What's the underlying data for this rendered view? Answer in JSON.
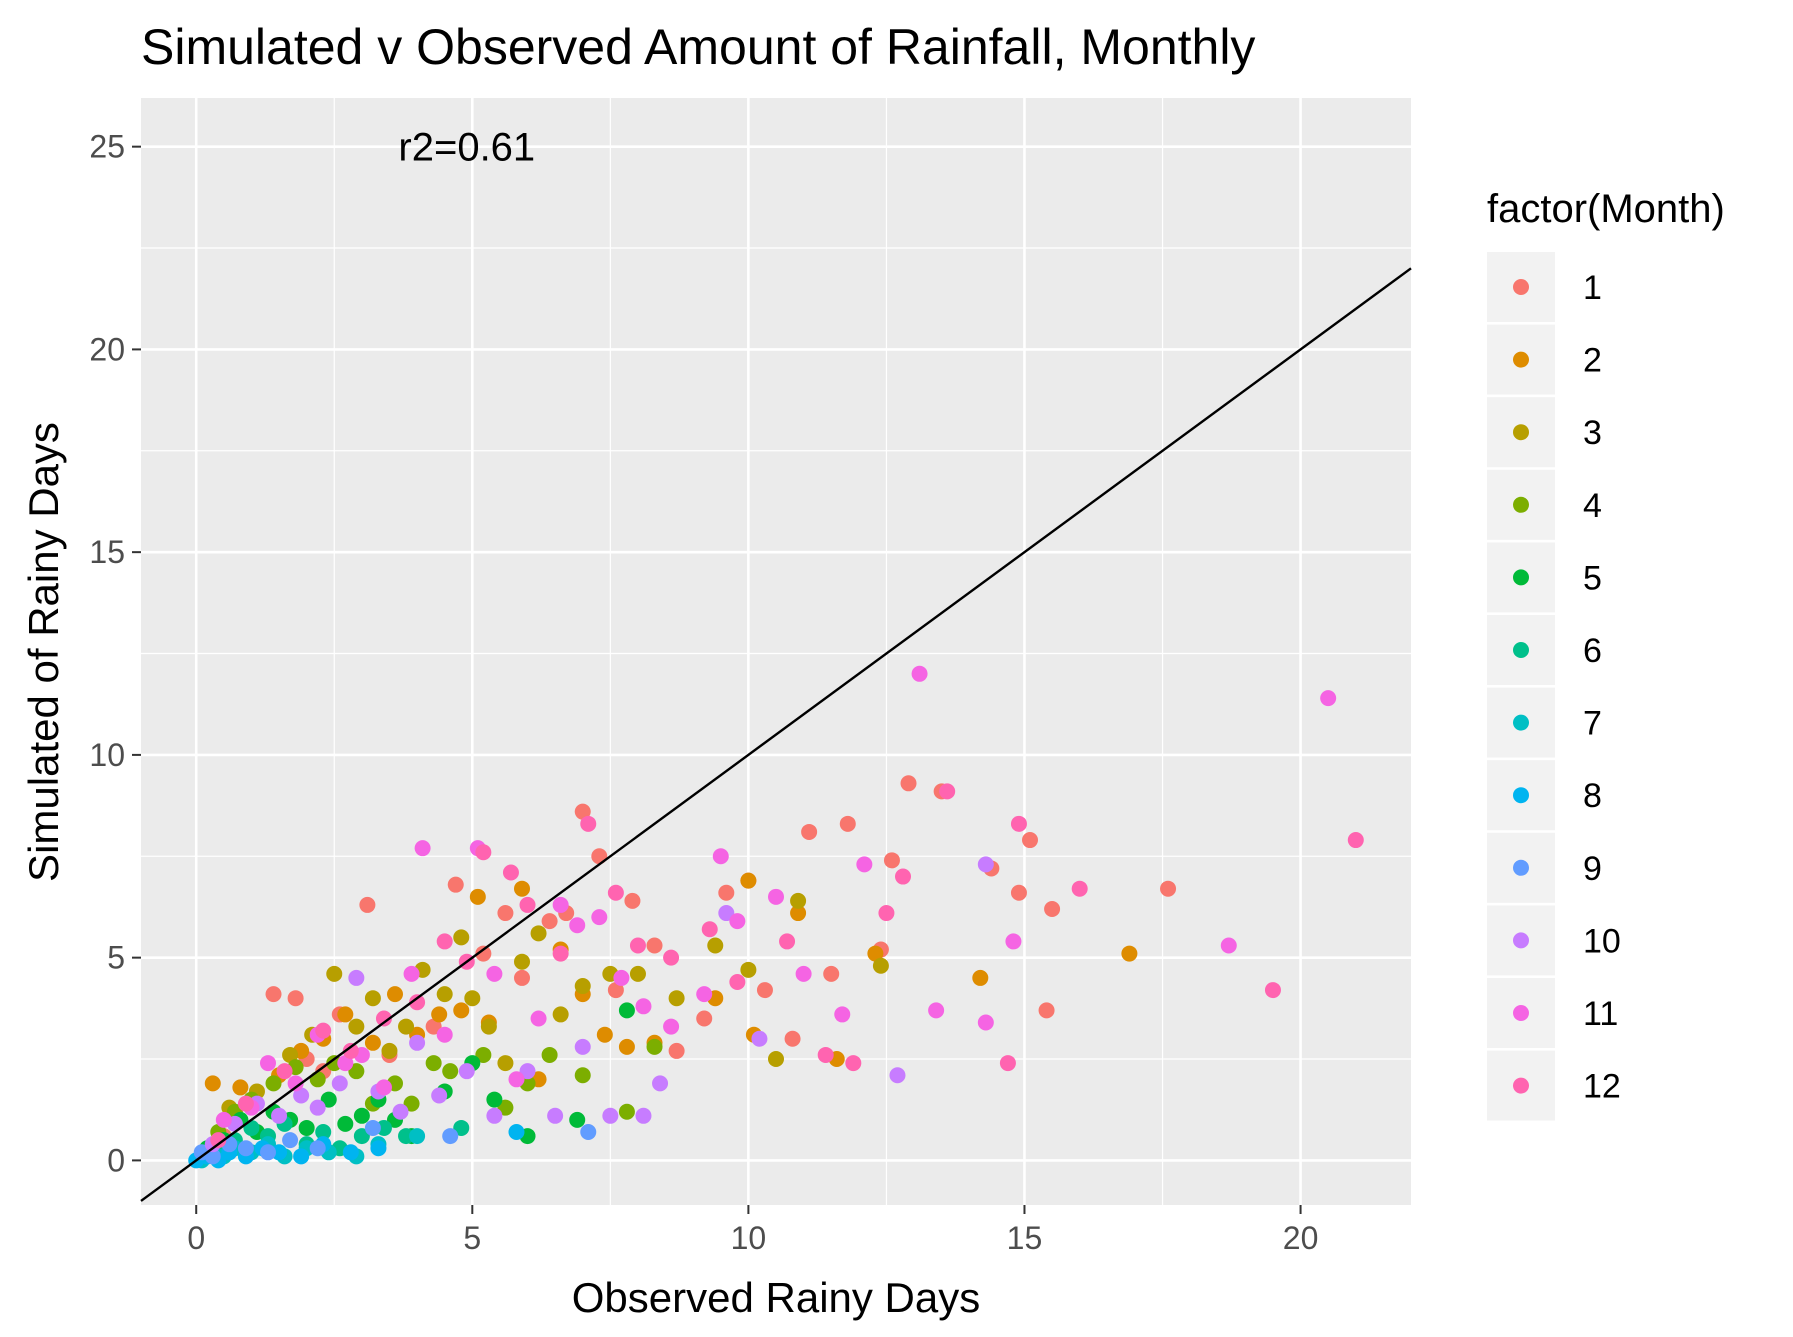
{
  "chart_data": {
    "type": "scatter",
    "title": "Simulated v Observed Amount of Rainfall, Monthly",
    "xlabel": "Observed Rainy Days",
    "ylabel": "Simulated of Rainy Days",
    "xlim": [
      -1,
      22
    ],
    "ylim": [
      -1.1,
      26.2
    ],
    "x_ticks": [
      0,
      5,
      10,
      15,
      20
    ],
    "y_ticks": [
      0,
      5,
      10,
      15,
      20,
      25
    ],
    "grid": true,
    "annotation": {
      "text": "r2=0.61",
      "x": 4.9,
      "y": 25
    },
    "reference_line": {
      "slope": 1,
      "intercept": 0
    },
    "legend": {
      "title": "factor(Month)",
      "position": "right"
    },
    "series": [
      {
        "name": "1",
        "color": "#F8766D",
        "points": [
          [
            0.2,
            0.1
          ],
          [
            0.5,
            0.6
          ],
          [
            1.4,
            4.1
          ],
          [
            1.8,
            4.0
          ],
          [
            2.0,
            2.5
          ],
          [
            2.3,
            2.2
          ],
          [
            2.6,
            3.6
          ],
          [
            3.1,
            6.3
          ],
          [
            3.5,
            2.6
          ],
          [
            4.3,
            3.3
          ],
          [
            4.7,
            6.8
          ],
          [
            5.2,
            5.1
          ],
          [
            5.6,
            6.1
          ],
          [
            5.9,
            4.5
          ],
          [
            6.4,
            5.9
          ],
          [
            6.7,
            6.1
          ],
          [
            7.0,
            8.6
          ],
          [
            7.3,
            7.5
          ],
          [
            7.6,
            4.2
          ],
          [
            7.9,
            6.4
          ],
          [
            8.3,
            5.3
          ],
          [
            8.7,
            2.7
          ],
          [
            9.2,
            3.5
          ],
          [
            9.6,
            6.6
          ],
          [
            10.0,
            6.9
          ],
          [
            10.3,
            4.2
          ],
          [
            10.8,
            3.0
          ],
          [
            11.1,
            8.1
          ],
          [
            11.5,
            4.6
          ],
          [
            11.8,
            8.3
          ],
          [
            12.4,
            5.2
          ],
          [
            12.6,
            7.4
          ],
          [
            12.9,
            9.3
          ],
          [
            13.5,
            9.1
          ],
          [
            14.4,
            7.2
          ],
          [
            14.9,
            6.6
          ],
          [
            15.1,
            7.9
          ],
          [
            15.4,
            3.7
          ],
          [
            15.5,
            6.2
          ],
          [
            17.6,
            6.7
          ]
        ]
      },
      {
        "name": "2",
        "color": "#DE8C00",
        "points": [
          [
            0.3,
            1.9
          ],
          [
            0.8,
            1.8
          ],
          [
            1.5,
            2.1
          ],
          [
            1.9,
            2.7
          ],
          [
            2.3,
            3.0
          ],
          [
            2.7,
            3.6
          ],
          [
            3.2,
            2.9
          ],
          [
            3.6,
            4.1
          ],
          [
            4.0,
            3.1
          ],
          [
            4.4,
            3.6
          ],
          [
            4.8,
            3.7
          ],
          [
            5.1,
            6.5
          ],
          [
            5.3,
            3.4
          ],
          [
            5.9,
            6.7
          ],
          [
            6.2,
            2.0
          ],
          [
            6.6,
            5.2
          ],
          [
            7.0,
            4.1
          ],
          [
            7.4,
            3.1
          ],
          [
            7.8,
            2.8
          ],
          [
            8.3,
            2.9
          ],
          [
            9.4,
            4.0
          ],
          [
            10.0,
            6.9
          ],
          [
            10.1,
            3.1
          ],
          [
            10.9,
            6.1
          ],
          [
            11.6,
            2.5
          ],
          [
            12.3,
            5.1
          ],
          [
            14.2,
            4.5
          ],
          [
            16.9,
            5.1
          ]
        ]
      },
      {
        "name": "3",
        "color": "#B79F00",
        "points": [
          [
            0.6,
            1.3
          ],
          [
            1.1,
            1.7
          ],
          [
            1.7,
            2.6
          ],
          [
            2.1,
            3.1
          ],
          [
            2.5,
            4.6
          ],
          [
            2.9,
            3.3
          ],
          [
            3.2,
            4.0
          ],
          [
            3.5,
            2.7
          ],
          [
            3.8,
            3.3
          ],
          [
            4.1,
            4.7
          ],
          [
            4.5,
            4.1
          ],
          [
            4.8,
            5.5
          ],
          [
            5.0,
            4.0
          ],
          [
            5.3,
            3.3
          ],
          [
            5.6,
            2.4
          ],
          [
            5.9,
            4.9
          ],
          [
            6.2,
            5.6
          ],
          [
            6.6,
            3.6
          ],
          [
            7.0,
            4.3
          ],
          [
            7.5,
            4.6
          ],
          [
            8.0,
            4.6
          ],
          [
            8.7,
            4.0
          ],
          [
            9.4,
            5.3
          ],
          [
            10.0,
            4.7
          ],
          [
            10.5,
            2.5
          ],
          [
            10.9,
            6.4
          ],
          [
            12.4,
            4.8
          ]
        ]
      },
      {
        "name": "4",
        "color": "#7CAE00",
        "points": [
          [
            0.4,
            0.7
          ],
          [
            0.7,
            1.2
          ],
          [
            1.0,
            1.5
          ],
          [
            1.4,
            1.9
          ],
          [
            1.8,
            2.3
          ],
          [
            2.2,
            2.0
          ],
          [
            2.5,
            2.4
          ],
          [
            2.9,
            2.2
          ],
          [
            3.2,
            1.4
          ],
          [
            3.6,
            1.9
          ],
          [
            3.9,
            1.4
          ],
          [
            4.3,
            2.4
          ],
          [
            4.6,
            2.2
          ],
          [
            5.2,
            2.6
          ],
          [
            5.6,
            1.3
          ],
          [
            6.0,
            1.9
          ],
          [
            6.4,
            2.6
          ],
          [
            7.0,
            2.1
          ],
          [
            7.8,
            1.2
          ],
          [
            8.3,
            2.8
          ]
        ]
      },
      {
        "name": "5",
        "color": "#00BA38",
        "points": [
          [
            0.2,
            0.3
          ],
          [
            0.5,
            0.5
          ],
          [
            0.8,
            1.0
          ],
          [
            1.1,
            0.7
          ],
          [
            1.4,
            1.2
          ],
          [
            1.7,
            1.0
          ],
          [
            2.0,
            0.8
          ],
          [
            2.4,
            1.5
          ],
          [
            2.7,
            0.9
          ],
          [
            3.0,
            1.1
          ],
          [
            3.3,
            1.5
          ],
          [
            3.6,
            1.0
          ],
          [
            3.9,
            0.6
          ],
          [
            4.5,
            1.7
          ],
          [
            5.0,
            2.4
          ],
          [
            5.4,
            1.5
          ],
          [
            6.0,
            0.6
          ],
          [
            6.9,
            1.0
          ],
          [
            7.8,
            3.7
          ]
        ]
      },
      {
        "name": "6",
        "color": "#00C08B",
        "points": [
          [
            0.1,
            0.1
          ],
          [
            0.4,
            0.3
          ],
          [
            0.7,
            0.5
          ],
          [
            1.0,
            0.8
          ],
          [
            1.3,
            0.6
          ],
          [
            1.6,
            0.9
          ],
          [
            2.0,
            0.4
          ],
          [
            2.3,
            0.7
          ],
          [
            2.6,
            0.3
          ],
          [
            3.0,
            0.6
          ],
          [
            3.4,
            0.8
          ],
          [
            3.8,
            0.6
          ],
          [
            4.8,
            0.8
          ]
        ]
      },
      {
        "name": "7",
        "color": "#00BFC4",
        "points": [
          [
            0.1,
            0.0
          ],
          [
            0.3,
            0.2
          ],
          [
            0.5,
            0.1
          ],
          [
            0.7,
            0.3
          ],
          [
            1.0,
            0.2
          ],
          [
            1.3,
            0.4
          ],
          [
            1.6,
            0.1
          ],
          [
            2.0,
            0.3
          ],
          [
            2.4,
            0.2
          ],
          [
            2.9,
            0.1
          ],
          [
            3.3,
            0.4
          ],
          [
            4.0,
            0.6
          ]
        ]
      },
      {
        "name": "8",
        "color": "#00B4F0",
        "points": [
          [
            0.0,
            0.0
          ],
          [
            0.2,
            0.1
          ],
          [
            0.4,
            0.0
          ],
          [
            0.6,
            0.2
          ],
          [
            0.9,
            0.1
          ],
          [
            1.2,
            0.3
          ],
          [
            1.5,
            0.2
          ],
          [
            1.9,
            0.1
          ],
          [
            2.3,
            0.4
          ],
          [
            2.8,
            0.2
          ],
          [
            3.3,
            0.3
          ],
          [
            5.8,
            0.7
          ]
        ]
      },
      {
        "name": "9",
        "color": "#619CFF",
        "points": [
          [
            0.1,
            0.2
          ],
          [
            0.3,
            0.1
          ],
          [
            0.6,
            0.4
          ],
          [
            0.9,
            0.3
          ],
          [
            1.3,
            0.2
          ],
          [
            1.7,
            0.5
          ],
          [
            2.2,
            0.3
          ],
          [
            3.2,
            0.8
          ],
          [
            4.6,
            0.6
          ],
          [
            7.1,
            0.7
          ]
        ]
      },
      {
        "name": "10",
        "color": "#C77CFF",
        "points": [
          [
            0.3,
            0.4
          ],
          [
            0.7,
            0.9
          ],
          [
            1.1,
            1.4
          ],
          [
            1.5,
            1.1
          ],
          [
            1.9,
            1.6
          ],
          [
            2.2,
            1.3
          ],
          [
            2.6,
            1.9
          ],
          [
            2.9,
            4.5
          ],
          [
            3.3,
            1.7
          ],
          [
            3.7,
            1.2
          ],
          [
            4.0,
            2.9
          ],
          [
            4.4,
            1.6
          ],
          [
            4.9,
            2.2
          ],
          [
            5.4,
            1.1
          ],
          [
            6.0,
            2.2
          ],
          [
            6.5,
            1.1
          ],
          [
            7.0,
            2.8
          ],
          [
            7.5,
            1.1
          ],
          [
            8.1,
            1.1
          ],
          [
            8.4,
            1.9
          ],
          [
            9.6,
            6.1
          ],
          [
            10.2,
            3.0
          ],
          [
            12.7,
            2.1
          ],
          [
            14.3,
            7.3
          ]
        ]
      },
      {
        "name": "11",
        "color": "#F564E3",
        "points": [
          [
            0.5,
            1.0
          ],
          [
            1.0,
            1.3
          ],
          [
            1.3,
            2.4
          ],
          [
            1.8,
            1.9
          ],
          [
            2.2,
            3.1
          ],
          [
            2.7,
            2.4
          ],
          [
            3.0,
            2.6
          ],
          [
            3.4,
            1.8
          ],
          [
            3.9,
            4.6
          ],
          [
            4.1,
            7.7
          ],
          [
            4.5,
            3.1
          ],
          [
            5.1,
            7.7
          ],
          [
            5.4,
            4.6
          ],
          [
            5.8,
            2.0
          ],
          [
            6.2,
            3.5
          ],
          [
            6.6,
            6.3
          ],
          [
            6.9,
            5.8
          ],
          [
            7.3,
            6.0
          ],
          [
            7.7,
            4.5
          ],
          [
            8.1,
            3.8
          ],
          [
            8.6,
            3.3
          ],
          [
            9.2,
            4.1
          ],
          [
            9.5,
            7.5
          ],
          [
            9.8,
            5.9
          ],
          [
            10.5,
            6.5
          ],
          [
            11.0,
            4.6
          ],
          [
            11.7,
            3.6
          ],
          [
            12.1,
            7.3
          ],
          [
            13.1,
            12.0
          ],
          [
            13.4,
            3.7
          ],
          [
            14.3,
            3.4
          ],
          [
            14.8,
            5.4
          ],
          [
            18.7,
            5.3
          ],
          [
            20.5,
            11.4
          ]
        ]
      },
      {
        "name": "12",
        "color": "#FF64B0",
        "points": [
          [
            0.4,
            0.5
          ],
          [
            0.9,
            1.4
          ],
          [
            1.6,
            2.2
          ],
          [
            2.3,
            3.2
          ],
          [
            2.8,
            2.7
          ],
          [
            3.4,
            3.5
          ],
          [
            4.0,
            3.9
          ],
          [
            4.5,
            5.4
          ],
          [
            4.9,
            4.9
          ],
          [
            5.2,
            7.6
          ],
          [
            5.7,
            7.1
          ],
          [
            6.0,
            6.3
          ],
          [
            6.6,
            5.1
          ],
          [
            7.1,
            8.3
          ],
          [
            7.6,
            6.6
          ],
          [
            8.0,
            5.3
          ],
          [
            8.6,
            5.0
          ],
          [
            9.3,
            5.7
          ],
          [
            9.8,
            4.4
          ],
          [
            10.7,
            5.4
          ],
          [
            11.4,
            2.6
          ],
          [
            11.9,
            2.4
          ],
          [
            12.5,
            6.1
          ],
          [
            12.8,
            7.0
          ],
          [
            13.6,
            9.1
          ],
          [
            14.7,
            2.4
          ],
          [
            14.9,
            8.3
          ],
          [
            16.0,
            6.7
          ],
          [
            19.5,
            4.2
          ],
          [
            21.0,
            7.9
          ]
        ]
      }
    ]
  }
}
